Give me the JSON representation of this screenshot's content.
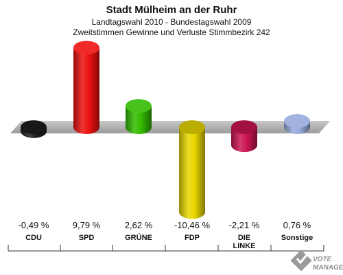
{
  "header": {
    "title": "Stadt Mülheim an der Ruhr",
    "subtitle1": "Landtagswahl 2010 - Bundestagswahl 2009",
    "subtitle2": "Zweitstimmen Gewinne und Verluste Stimmbezirk 242"
  },
  "chart_data": {
    "type": "bar",
    "title": "Stadt Mülheim an der Ruhr",
    "categories": [
      "CDU",
      "SPD",
      "GRÜNE",
      "FDP",
      "DIE LINKE",
      "Sonstige"
    ],
    "category_lines": [
      [
        "CDU"
      ],
      [
        "SPD"
      ],
      [
        "GRÜNE"
      ],
      [
        "FDP"
      ],
      [
        "DIE",
        "LINKE"
      ],
      [
        "Sonstige"
      ]
    ],
    "values": [
      -0.49,
      9.79,
      2.62,
      -10.46,
      -2.21,
      0.76
    ],
    "value_labels": [
      "-0,49 %",
      "9,79 %",
      "2,62 %",
      "-10,46 %",
      "-2,21 %",
      "0,76 %"
    ],
    "colors": [
      "#1e1e1e",
      "#ee1111",
      "#33bb00",
      "#e8d700",
      "#cc1555",
      "#99aadd"
    ],
    "baseline": "zero",
    "grid": false,
    "legend": "none"
  },
  "watermark": {
    "line1": "VOTE",
    "line2": "MANAGER"
  }
}
